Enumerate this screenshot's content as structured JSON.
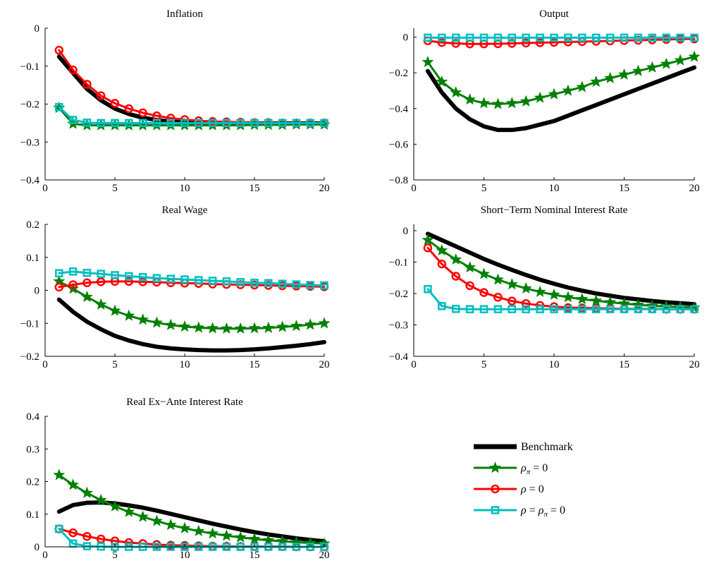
{
  "legend": {
    "entries": [
      {
        "key": "benchmark",
        "label": "Benchmark"
      },
      {
        "key": "rho_pi",
        "label": "ρπ = 0",
        "parts": [
          {
            "t": "ρ",
            "c": "it"
          },
          {
            "t": "π",
            "c": "sub"
          },
          {
            "t": " = 0",
            "c": ""
          }
        ]
      },
      {
        "key": "rho",
        "label": "ρ = 0",
        "parts": [
          {
            "t": "ρ",
            "c": "it"
          },
          {
            "t": " = 0",
            "c": ""
          }
        ]
      },
      {
        "key": "rho_both",
        "label": "ρ = ρπ = 0",
        "parts": [
          {
            "t": "ρ",
            "c": "it"
          },
          {
            "t": " = ",
            "c": ""
          },
          {
            "t": "ρ",
            "c": "it"
          },
          {
            "t": "π",
            "c": "sub"
          },
          {
            "t": " = 0",
            "c": ""
          }
        ]
      }
    ]
  },
  "series_styles": {
    "benchmark": {
      "color": "#000000",
      "marker": "none"
    },
    "rho_pi": {
      "color": "#008000",
      "marker": "star"
    },
    "rho": {
      "color": "#ff0000",
      "marker": "circle"
    },
    "rho_both": {
      "color": "#00bfbf",
      "marker": "square"
    }
  },
  "chart_data": [
    {
      "type": "line",
      "title": "Inflation",
      "x": [
        1,
        2,
        3,
        4,
        5,
        6,
        7,
        8,
        9,
        10,
        11,
        12,
        13,
        14,
        15,
        16,
        17,
        18,
        19,
        20
      ],
      "xlim": [
        0,
        20
      ],
      "ylim": [
        -0.4,
        0
      ],
      "xticks": [
        0,
        5,
        10,
        15,
        20
      ],
      "xtick_labels": [
        "0",
        "5",
        "10",
        "15",
        "20"
      ],
      "yticks": [
        -0.4,
        -0.3,
        -0.2,
        -0.1,
        0
      ],
      "ytick_labels": [
        "−0.4",
        "−0.3",
        "−0.2",
        "−0.1",
        "0"
      ],
      "series": [
        {
          "key": "benchmark",
          "values": [
            -0.075,
            -0.118,
            -0.16,
            -0.19,
            -0.212,
            -0.226,
            -0.236,
            -0.242,
            -0.246,
            -0.249,
            -0.25,
            -0.251,
            -0.251,
            -0.251,
            -0.251,
            -0.251,
            -0.251,
            -0.251,
            -0.251,
            -0.251
          ]
        },
        {
          "key": "rho_pi",
          "values": [
            -0.21,
            -0.252,
            -0.256,
            -0.256,
            -0.256,
            -0.256,
            -0.256,
            -0.256,
            -0.256,
            -0.256,
            -0.256,
            -0.256,
            -0.256,
            -0.256,
            -0.255,
            -0.255,
            -0.255,
            -0.254,
            -0.254,
            -0.254
          ]
        },
        {
          "key": "rho",
          "values": [
            -0.058,
            -0.11,
            -0.148,
            -0.178,
            -0.198,
            -0.212,
            -0.223,
            -0.231,
            -0.237,
            -0.241,
            -0.244,
            -0.246,
            -0.247,
            -0.248,
            -0.249,
            -0.249,
            -0.25,
            -0.25,
            -0.25,
            -0.25
          ]
        },
        {
          "key": "rho_both",
          "values": [
            -0.208,
            -0.242,
            -0.249,
            -0.25,
            -0.25,
            -0.25,
            -0.25,
            -0.25,
            -0.25,
            -0.25,
            -0.25,
            -0.25,
            -0.25,
            -0.25,
            -0.25,
            -0.25,
            -0.25,
            -0.25,
            -0.25,
            -0.25
          ]
        }
      ]
    },
    {
      "type": "line",
      "title": "Output",
      "x": [
        1,
        2,
        3,
        4,
        5,
        6,
        7,
        8,
        9,
        10,
        11,
        12,
        13,
        14,
        15,
        16,
        17,
        18,
        19,
        20
      ],
      "xlim": [
        0,
        20
      ],
      "ylim": [
        -0.8,
        0.05
      ],
      "xticks": [
        0,
        5,
        10,
        15,
        20
      ],
      "xtick_labels": [
        "0",
        "5",
        "10",
        "15",
        "20"
      ],
      "yticks": [
        -0.8,
        -0.6,
        -0.4,
        -0.2,
        0
      ],
      "ytick_labels": [
        "−0.8",
        "−0.6",
        "−0.4",
        "−0.2",
        "0"
      ],
      "series": [
        {
          "key": "benchmark",
          "values": [
            -0.19,
            -0.31,
            -0.4,
            -0.46,
            -0.5,
            -0.52,
            -0.52,
            -0.51,
            -0.49,
            -0.47,
            -0.44,
            -0.41,
            -0.38,
            -0.35,
            -0.32,
            -0.29,
            -0.26,
            -0.23,
            -0.2,
            -0.17
          ]
        },
        {
          "key": "rho_pi",
          "values": [
            -0.14,
            -0.25,
            -0.31,
            -0.35,
            -0.37,
            -0.375,
            -0.37,
            -0.36,
            -0.34,
            -0.32,
            -0.3,
            -0.28,
            -0.25,
            -0.23,
            -0.21,
            -0.19,
            -0.17,
            -0.15,
            -0.13,
            -0.11
          ]
        },
        {
          "key": "rho",
          "values": [
            -0.02,
            -0.03,
            -0.035,
            -0.038,
            -0.038,
            -0.037,
            -0.035,
            -0.033,
            -0.031,
            -0.029,
            -0.027,
            -0.025,
            -0.023,
            -0.021,
            -0.019,
            -0.017,
            -0.015,
            -0.013,
            -0.011,
            -0.01
          ]
        },
        {
          "key": "rho_both",
          "values": [
            -0.003,
            -0.003,
            -0.003,
            -0.003,
            -0.003,
            -0.003,
            -0.003,
            -0.003,
            -0.003,
            -0.003,
            -0.003,
            -0.003,
            -0.003,
            -0.003,
            -0.003,
            -0.003,
            -0.003,
            -0.003,
            -0.003,
            -0.003
          ]
        }
      ]
    },
    {
      "type": "line",
      "title": "Real Wage",
      "x": [
        1,
        2,
        3,
        4,
        5,
        6,
        7,
        8,
        9,
        10,
        11,
        12,
        13,
        14,
        15,
        16,
        17,
        18,
        19,
        20
      ],
      "xlim": [
        0,
        20
      ],
      "ylim": [
        -0.2,
        0.2
      ],
      "xticks": [
        0,
        5,
        10,
        15,
        20
      ],
      "xtick_labels": [
        "0",
        "5",
        "10",
        "15",
        "20"
      ],
      "yticks": [
        -0.2,
        -0.1,
        0,
        0.1,
        0.2
      ],
      "ytick_labels": [
        "−0.2",
        "−0.1",
        "0",
        "0.1",
        "0.2"
      ],
      "series": [
        {
          "key": "benchmark",
          "values": [
            -0.028,
            -0.065,
            -0.095,
            -0.118,
            -0.138,
            -0.152,
            -0.163,
            -0.171,
            -0.176,
            -0.179,
            -0.181,
            -0.182,
            -0.182,
            -0.181,
            -0.179,
            -0.176,
            -0.172,
            -0.168,
            -0.163,
            -0.157
          ]
        },
        {
          "key": "rho_pi",
          "values": [
            0.027,
            0.005,
            -0.02,
            -0.043,
            -0.062,
            -0.077,
            -0.089,
            -0.098,
            -0.105,
            -0.11,
            -0.113,
            -0.115,
            -0.116,
            -0.116,
            -0.115,
            -0.114,
            -0.111,
            -0.108,
            -0.104,
            -0.1
          ]
        },
        {
          "key": "rho",
          "values": [
            0.01,
            0.017,
            0.023,
            0.026,
            0.027,
            0.027,
            0.026,
            0.025,
            0.023,
            0.022,
            0.021,
            0.019,
            0.018,
            0.017,
            0.016,
            0.015,
            0.014,
            0.013,
            0.012,
            0.011
          ]
        },
        {
          "key": "rho_both",
          "values": [
            0.052,
            0.057,
            0.053,
            0.05,
            0.046,
            0.043,
            0.04,
            0.037,
            0.035,
            0.033,
            0.031,
            0.029,
            0.027,
            0.025,
            0.023,
            0.022,
            0.02,
            0.018,
            0.016,
            0.015
          ]
        }
      ]
    },
    {
      "type": "line",
      "title": "Short−Term Nominal Interest Rate",
      "x": [
        1,
        2,
        3,
        4,
        5,
        6,
        7,
        8,
        9,
        10,
        11,
        12,
        13,
        14,
        15,
        16,
        17,
        18,
        19,
        20
      ],
      "xlim": [
        0,
        20
      ],
      "ylim": [
        -0.4,
        0.02
      ],
      "xticks": [
        0,
        5,
        10,
        15,
        20
      ],
      "xtick_labels": [
        "0",
        "5",
        "10",
        "15",
        "20"
      ],
      "yticks": [
        -0.4,
        -0.3,
        -0.2,
        -0.1,
        0
      ],
      "ytick_labels": [
        "−0.4",
        "−0.3",
        "−0.2",
        "−0.1",
        "0"
      ],
      "series": [
        {
          "key": "benchmark",
          "values": [
            -0.01,
            -0.03,
            -0.05,
            -0.07,
            -0.09,
            -0.108,
            -0.125,
            -0.141,
            -0.156,
            -0.169,
            -0.181,
            -0.191,
            -0.2,
            -0.207,
            -0.214,
            -0.219,
            -0.224,
            -0.228,
            -0.231,
            -0.234
          ]
        },
        {
          "key": "rho_pi",
          "values": [
            -0.03,
            -0.063,
            -0.092,
            -0.117,
            -0.138,
            -0.156,
            -0.171,
            -0.184,
            -0.195,
            -0.204,
            -0.212,
            -0.218,
            -0.223,
            -0.228,
            -0.232,
            -0.236,
            -0.239,
            -0.241,
            -0.243,
            -0.245
          ]
        },
        {
          "key": "rho",
          "values": [
            -0.055,
            -0.106,
            -0.145,
            -0.175,
            -0.197,
            -0.212,
            -0.224,
            -0.232,
            -0.238,
            -0.242,
            -0.245,
            -0.246,
            -0.247,
            -0.248,
            -0.249,
            -0.249,
            -0.249,
            -0.25,
            -0.25,
            -0.25
          ]
        },
        {
          "key": "rho_both",
          "values": [
            -0.186,
            -0.24,
            -0.249,
            -0.25,
            -0.25,
            -0.25,
            -0.25,
            -0.25,
            -0.25,
            -0.25,
            -0.25,
            -0.25,
            -0.25,
            -0.25,
            -0.25,
            -0.25,
            -0.25,
            -0.25,
            -0.25,
            -0.25
          ]
        }
      ]
    },
    {
      "type": "line",
      "title": "Real Ex−Ante Interest Rate",
      "x": [
        1,
        2,
        3,
        4,
        5,
        6,
        7,
        8,
        9,
        10,
        11,
        12,
        13,
        14,
        15,
        16,
        17,
        18,
        19,
        20
      ],
      "xlim": [
        0,
        20
      ],
      "ylim": [
        0,
        0.4
      ],
      "xticks": [
        0,
        5,
        10,
        15,
        20
      ],
      "xtick_labels": [
        "0",
        "5",
        "10",
        "15",
        "20"
      ],
      "yticks": [
        0,
        0.1,
        0.2,
        0.3,
        0.4
      ],
      "ytick_labels": [
        "0",
        "0.1",
        "0.2",
        "0.3",
        "0.4"
      ],
      "series": [
        {
          "key": "benchmark",
          "values": [
            0.108,
            0.128,
            0.135,
            0.136,
            0.133,
            0.127,
            0.12,
            0.111,
            0.101,
            0.091,
            0.081,
            0.071,
            0.062,
            0.053,
            0.045,
            0.038,
            0.032,
            0.026,
            0.021,
            0.017
          ]
        },
        {
          "key": "rho_pi",
          "values": [
            0.22,
            0.19,
            0.165,
            0.143,
            0.124,
            0.107,
            0.092,
            0.079,
            0.067,
            0.057,
            0.048,
            0.041,
            0.034,
            0.029,
            0.024,
            0.02,
            0.017,
            0.014,
            0.012,
            0.01
          ]
        },
        {
          "key": "rho",
          "values": [
            0.055,
            0.043,
            0.032,
            0.024,
            0.018,
            0.013,
            0.01,
            0.007,
            0.005,
            0.004,
            0.003,
            0.002,
            0.002,
            0.001,
            0.001,
            0.001,
            0.001,
            0.0,
            0.0,
            0.0
          ]
        },
        {
          "key": "rho_both",
          "values": [
            0.055,
            0.01,
            0.002,
            0.001,
            0.0,
            0.0,
            0.0,
            0.0,
            0.0,
            0.0,
            0.0,
            0.0,
            0.0,
            0.0,
            0.0,
            0.0,
            0.0,
            0.0,
            0.0,
            0.0
          ]
        }
      ]
    }
  ]
}
